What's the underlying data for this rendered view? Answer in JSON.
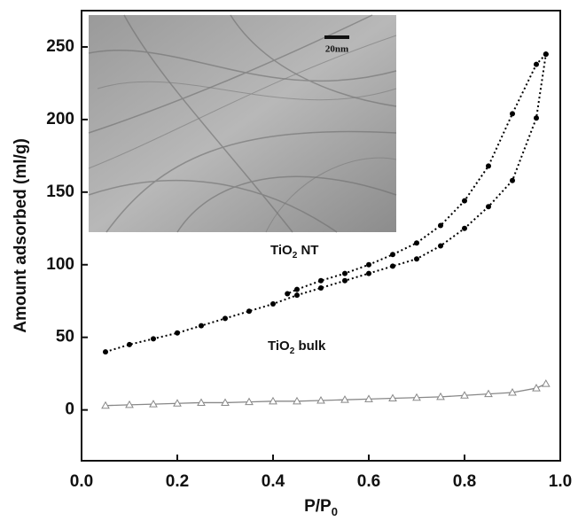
{
  "chart_data": {
    "type": "line",
    "y_label": "Amount adsorbed (ml/g)",
    "x_label_parts": [
      "P/P",
      "0"
    ],
    "inset_scale_label": "20nm",
    "annotations": [
      {
        "parts": [
          "TiO",
          "2",
          " NT"
        ]
      },
      {
        "parts": [
          "TiO",
          "2",
          " bulk"
        ]
      }
    ],
    "xlim": [
      0,
      1
    ],
    "xticks": [
      {
        "value": 0,
        "label": "0.0"
      },
      0.2,
      0.4,
      0.6,
      0.8,
      {
        "value": 1,
        "label": "1.0"
      }
    ],
    "ylim": [
      -35,
      275
    ],
    "yticks": [
      0,
      50,
      100,
      150,
      200,
      250
    ],
    "series": [
      {
        "color": "#000000",
        "marker": "circle",
        "line_style": "dotted",
        "x": [
          0.05,
          0.1,
          0.15,
          0.2,
          0.25,
          0.3,
          0.35,
          0.4,
          0.45,
          0.5,
          0.55,
          0.6,
          0.65,
          0.7,
          0.75,
          0.8,
          0.85,
          0.9,
          0.95,
          0.97
        ],
        "values": [
          40,
          45,
          49,
          53,
          58,
          63,
          68,
          73,
          79,
          84,
          89,
          94,
          99,
          104,
          113,
          125,
          140,
          158,
          201,
          245
        ]
      },
      {
        "color": "#000000",
        "marker": "circle",
        "line_style": "dotted",
        "x": [
          0.97,
          0.95,
          0.9,
          0.85,
          0.8,
          0.75,
          0.7,
          0.65,
          0.6,
          0.55,
          0.5,
          0.45,
          0.43
        ],
        "values": [
          245,
          238,
          204,
          168,
          144,
          127,
          115,
          107,
          100,
          94,
          89,
          83,
          80
        ]
      },
      {
        "color": "#888888",
        "marker": "triangle",
        "line_style": "solid",
        "x": [
          0.05,
          0.1,
          0.15,
          0.2,
          0.25,
          0.3,
          0.35,
          0.4,
          0.45,
          0.5,
          0.55,
          0.6,
          0.65,
          0.7,
          0.75,
          0.8,
          0.85,
          0.9,
          0.95,
          0.97
        ],
        "values": [
          3,
          3.5,
          4,
          4.5,
          5,
          5,
          5.5,
          6,
          6,
          6.5,
          7,
          7.5,
          8,
          8.5,
          9,
          10,
          11,
          12,
          15,
          18
        ]
      }
    ]
  }
}
